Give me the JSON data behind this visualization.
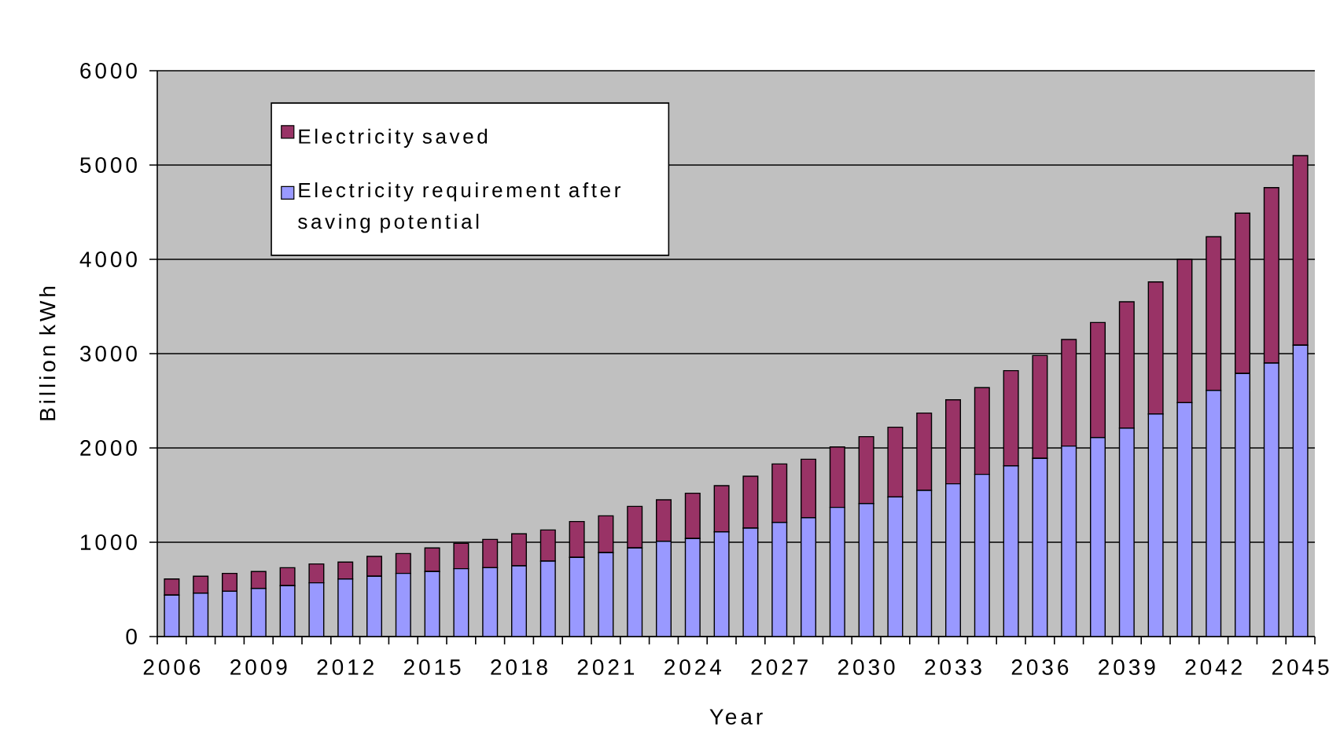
{
  "chart_data": {
    "type": "bar",
    "stacked": true,
    "xlabel": "Year",
    "ylabel": "Billion kWh",
    "x": [
      2006,
      2007,
      2008,
      2009,
      2010,
      2011,
      2012,
      2013,
      2014,
      2015,
      2016,
      2017,
      2018,
      2019,
      2020,
      2021,
      2022,
      2023,
      2024,
      2025,
      2026,
      2027,
      2028,
      2029,
      2030,
      2031,
      2032,
      2033,
      2034,
      2035,
      2036,
      2037,
      2038,
      2039,
      2040,
      2041,
      2042,
      2043,
      2044,
      2045
    ],
    "xlim": [
      2005.5,
      2045.5
    ],
    "xticks": [
      2006,
      2009,
      2012,
      2015,
      2018,
      2021,
      2024,
      2027,
      2030,
      2033,
      2036,
      2039,
      2042,
      2045
    ],
    "ylim": [
      0,
      6000
    ],
    "yticks": [
      0,
      1000,
      2000,
      3000,
      4000,
      5000,
      6000
    ],
    "grid": "y",
    "legend": "top left",
    "series": [
      {
        "name": "Electricity requirement after saving potential",
        "color": "#9999ff",
        "values": [
          440,
          460,
          480,
          510,
          540,
          570,
          610,
          640,
          670,
          690,
          720,
          730,
          750,
          800,
          840,
          890,
          940,
          1010,
          1040,
          1110,
          1150,
          1210,
          1260,
          1370,
          1410,
          1480,
          1550,
          1620,
          1720,
          1810,
          1890,
          2020,
          2110,
          2210,
          2360,
          2480,
          2610,
          2790,
          2900,
          3090
        ]
      },
      {
        "name": "Electricity saved",
        "color": "#993366",
        "values": [
          170,
          180,
          190,
          180,
          190,
          200,
          180,
          210,
          210,
          250,
          270,
          300,
          340,
          330,
          380,
          390,
          440,
          440,
          480,
          490,
          550,
          620,
          620,
          640,
          710,
          740,
          820,
          890,
          920,
          1010,
          1090,
          1130,
          1220,
          1340,
          1400,
          1520,
          1630,
          1700,
          1860,
          2010
        ]
      }
    ]
  }
}
